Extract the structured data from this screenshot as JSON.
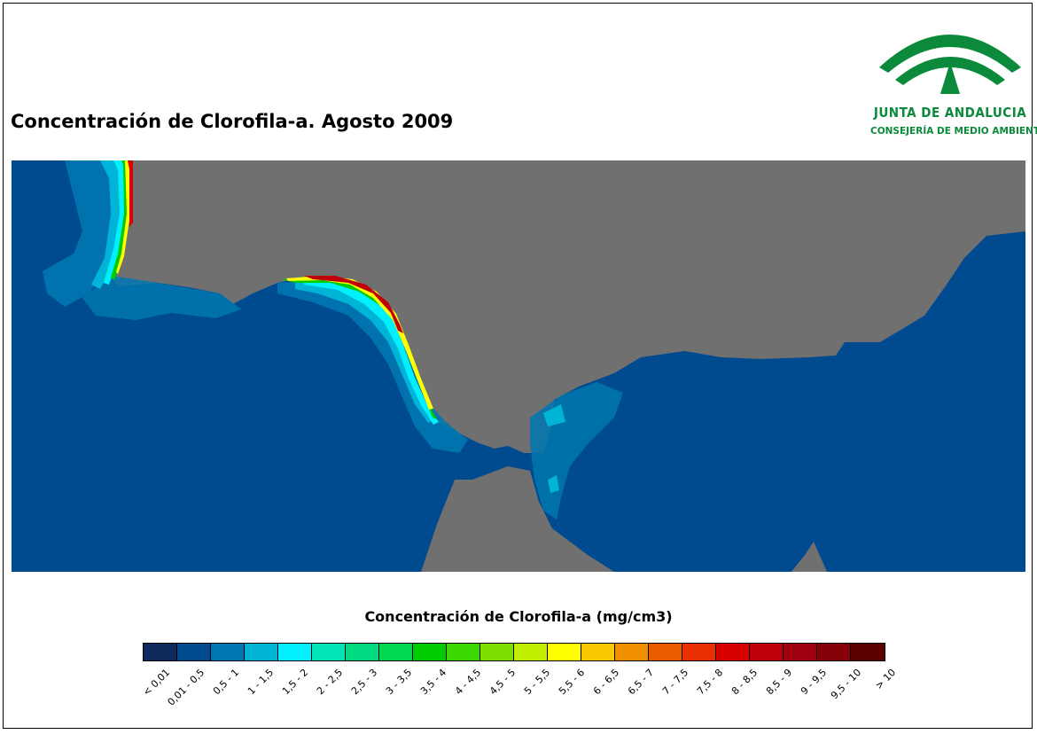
{
  "title": "Concentración de Clorofila-a. Agosto 2009",
  "logo": {
    "name": "JUNTA DE ANDALUCIA",
    "subtitle": "CONSEJERÍA DE MEDIO AMBIENTE",
    "color": "#0a8a3a"
  },
  "map": {
    "land_color": "#707070",
    "sea_color": "#004a8f",
    "region": "Golfo de Cádiz y Estrecho de Gibraltar"
  },
  "legend": {
    "title": "Concentración de Clorofila-a (mg/cm3)",
    "classes": [
      {
        "label": "< 0,01",
        "color": "#0c2a5c"
      },
      {
        "label": "0,01 - 0,5",
        "color": "#004a8f"
      },
      {
        "label": "0,5 - 1",
        "color": "#0077b0"
      },
      {
        "label": "1 - 1,5",
        "color": "#00b4d8"
      },
      {
        "label": "1,5 - 2",
        "color": "#00f0ff"
      },
      {
        "label": "2 - 2,5",
        "color": "#00e6b8"
      },
      {
        "label": "2,5 - 3",
        "color": "#00d882"
      },
      {
        "label": "3 - 3,5",
        "color": "#00d850"
      },
      {
        "label": "3,5 - 4",
        "color": "#00cc00"
      },
      {
        "label": "4 - 4,5",
        "color": "#3ad800"
      },
      {
        "label": "4,5 - 5",
        "color": "#7ee000"
      },
      {
        "label": "5 - 5,5",
        "color": "#c0f000"
      },
      {
        "label": "5,5 - 6",
        "color": "#ffff00"
      },
      {
        "label": "6 - 6,5",
        "color": "#f8c800"
      },
      {
        "label": "6,5 - 7",
        "color": "#f09000"
      },
      {
        "label": "7 - 7,5",
        "color": "#ea5a00"
      },
      {
        "label": "7,5 - 8",
        "color": "#e83000"
      },
      {
        "label": "8 - 8,5",
        "color": "#d80000"
      },
      {
        "label": "8,5 - 9",
        "color": "#c00008"
      },
      {
        "label": "9 - 9,5",
        "color": "#a00010"
      },
      {
        "label": "9,5 - 10",
        "color": "#850008"
      },
      {
        "label": "> 10",
        "color": "#5c0000"
      }
    ]
  }
}
